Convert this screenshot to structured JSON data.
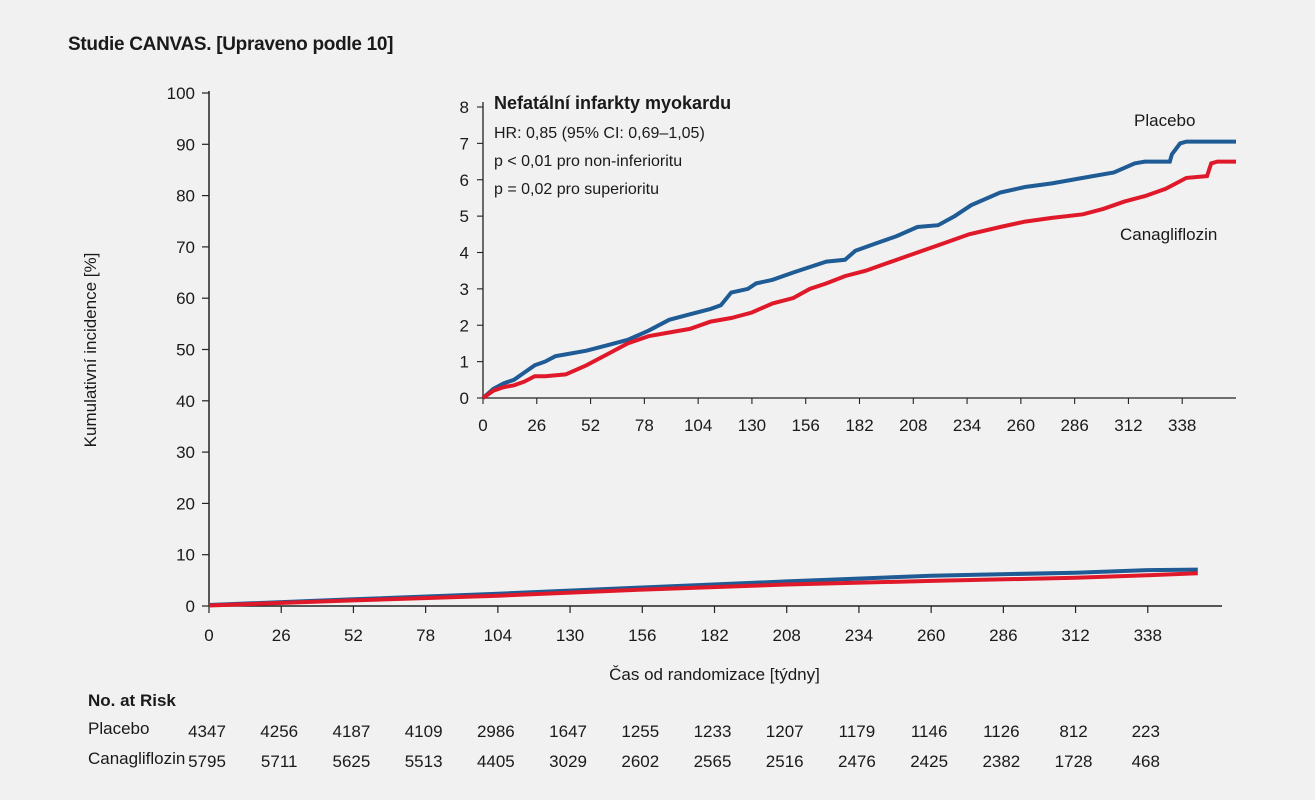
{
  "page_title": "Studie CANVAS. [Upraveno podle 10]",
  "chart_data": [
    {
      "type": "line",
      "title": "",
      "xlabel": "Čas od randomizace [týdny]",
      "ylabel": "Kumulativní incidence [%]",
      "xlim": [
        0,
        364
      ],
      "ylim": [
        0,
        100
      ],
      "xticks": [
        0,
        26,
        52,
        78,
        104,
        130,
        156,
        182,
        208,
        234,
        260,
        286,
        312,
        338
      ],
      "yticks": [
        0,
        10,
        20,
        30,
        40,
        50,
        60,
        70,
        80,
        90,
        100
      ],
      "colors": {
        "Placebo": "#1f5b94",
        "Canagliflozin": "#e0192a"
      },
      "series": [
        {
          "name": "Placebo",
          "x": [
            0,
            52,
            104,
            156,
            208,
            260,
            312,
            338,
            356
          ],
          "y": [
            0.2,
            1.3,
            2.4,
            3.6,
            4.8,
            5.9,
            6.5,
            7.0,
            7.1
          ]
        },
        {
          "name": "Canagliflozin",
          "x": [
            0,
            52,
            104,
            156,
            208,
            260,
            312,
            338,
            356
          ],
          "y": [
            0.1,
            1.1,
            2.0,
            3.2,
            4.2,
            4.9,
            5.5,
            6.0,
            6.4
          ]
        }
      ]
    },
    {
      "type": "line",
      "title": "Nefatální infarkty myokardu",
      "annotations": [
        "HR: 0,85 (95% CI: 0,69–1,05)",
        "p < 0,01 pro non-inferioritu",
        "p = 0,02 pro superioritu"
      ],
      "xlim": [
        0,
        364
      ],
      "ylim": [
        0,
        8
      ],
      "xticks": [
        0,
        26,
        52,
        78,
        104,
        130,
        156,
        182,
        208,
        234,
        260,
        286,
        312,
        338
      ],
      "yticks": [
        0,
        1,
        2,
        3,
        4,
        5,
        6,
        7,
        8
      ],
      "series_labels": [
        "Placebo",
        "Canagliflozin"
      ],
      "series": [
        {
          "name": "Placebo",
          "x": [
            0,
            5,
            10,
            15,
            20,
            25,
            30,
            35,
            40,
            50,
            60,
            70,
            80,
            90,
            100,
            110,
            115,
            120,
            128,
            132,
            140,
            150,
            158,
            166,
            175,
            180,
            190,
            200,
            210,
            220,
            228,
            236,
            250,
            262,
            275,
            290,
            305,
            315,
            320,
            332,
            333,
            337,
            340,
            355,
            364
          ],
          "y": [
            0,
            0.25,
            0.4,
            0.5,
            0.7,
            0.9,
            1.0,
            1.15,
            1.2,
            1.3,
            1.45,
            1.6,
            1.85,
            2.15,
            2.3,
            2.45,
            2.55,
            2.9,
            3.0,
            3.15,
            3.25,
            3.45,
            3.6,
            3.75,
            3.8,
            4.05,
            4.25,
            4.45,
            4.7,
            4.75,
            5.0,
            5.3,
            5.65,
            5.8,
            5.9,
            6.05,
            6.2,
            6.45,
            6.5,
            6.5,
            6.7,
            7.0,
            7.05,
            7.05,
            7.05
          ]
        },
        {
          "name": "Canagliflozin",
          "x": [
            0,
            5,
            10,
            15,
            20,
            25,
            30,
            40,
            50,
            60,
            70,
            80,
            90,
            100,
            110,
            120,
            130,
            140,
            150,
            158,
            166,
            175,
            185,
            195,
            205,
            215,
            225,
            235,
            250,
            262,
            275,
            290,
            300,
            310,
            320,
            330,
            335,
            340,
            350,
            352,
            355,
            364
          ],
          "y": [
            0,
            0.2,
            0.3,
            0.35,
            0.45,
            0.6,
            0.6,
            0.65,
            0.9,
            1.2,
            1.5,
            1.7,
            1.8,
            1.9,
            2.1,
            2.2,
            2.35,
            2.6,
            2.75,
            3.0,
            3.15,
            3.35,
            3.5,
            3.7,
            3.9,
            4.1,
            4.3,
            4.5,
            4.7,
            4.85,
            4.95,
            5.05,
            5.2,
            5.4,
            5.55,
            5.75,
            5.9,
            6.05,
            6.1,
            6.45,
            6.5,
            6.5
          ]
        }
      ]
    }
  ],
  "risk_table": {
    "heading": "No. at Risk",
    "rows": [
      {
        "label": "Placebo",
        "values": [
          "4347",
          "4256",
          "4187",
          "4109",
          "2986",
          "1647",
          "1255",
          "1233",
          "1207",
          "1179",
          "1146",
          "1126",
          "812",
          "223"
        ]
      },
      {
        "label": "Canagliflozin",
        "values": [
          "5795",
          "5711",
          "5625",
          "5513",
          "4405",
          "3029",
          "2602",
          "2565",
          "2516",
          "2476",
          "2425",
          "2382",
          "1728",
          "468"
        ]
      }
    ]
  }
}
